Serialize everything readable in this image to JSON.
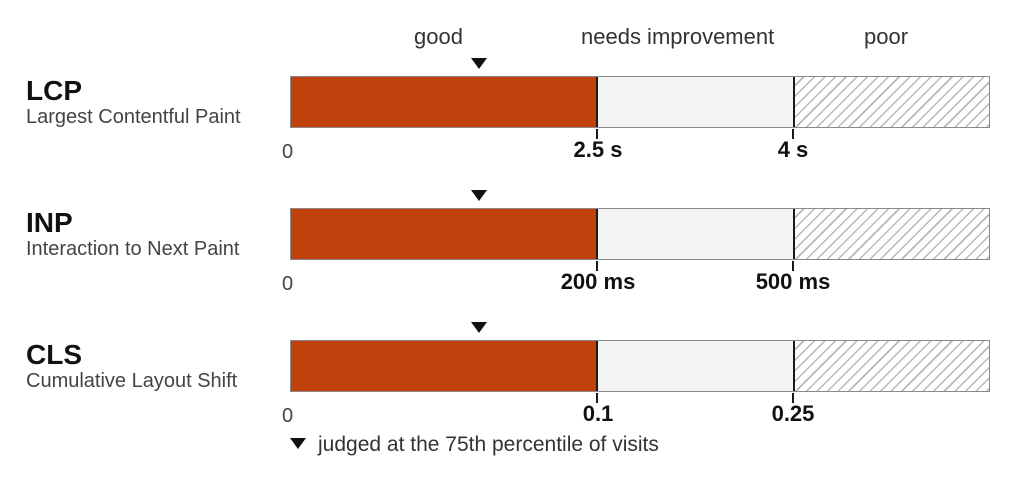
{
  "zones": {
    "good": "good",
    "needs_improvement": "needs improvement",
    "poor": "poor"
  },
  "metrics": [
    {
      "abbr": "LCP",
      "name": "Largest Contentful Paint",
      "zero": "0",
      "good_threshold": "2.5 s",
      "poor_threshold": "4 s"
    },
    {
      "abbr": "INP",
      "name": "Interaction to Next Paint",
      "zero": "0",
      "good_threshold": "200 ms",
      "poor_threshold": "500 ms"
    },
    {
      "abbr": "CLS",
      "name": "Cumulative Layout Shift",
      "zero": "0",
      "good_threshold": "0.1",
      "poor_threshold": "0.25"
    }
  ],
  "footnote": {
    "text": "judged at the 75th percentile of visits",
    "icon": "down-triangle-icon"
  },
  "colors": {
    "good": "#c1410c",
    "needs_improvement": "#f3f3f3",
    "poor_hatch": "#b8b8b8",
    "border": "#8a8a8a"
  }
}
